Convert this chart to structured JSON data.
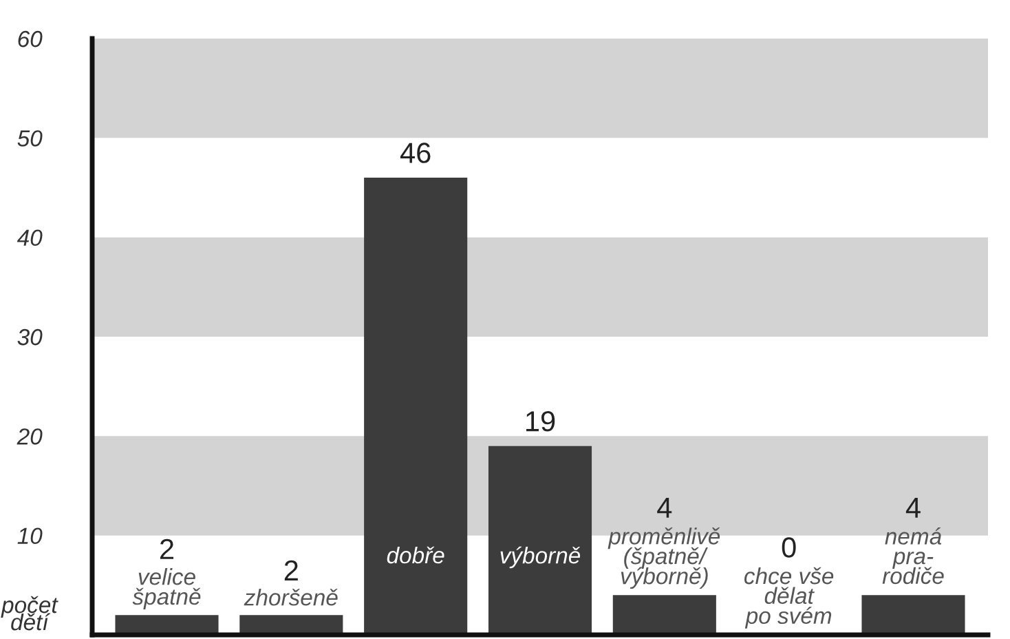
{
  "chart_data": {
    "type": "bar",
    "ylabel": "počet\ndětí",
    "categories": [
      "velice\nšpatně",
      "zhoršeně",
      "dobře",
      "výborně",
      "proměnlivě\n(špatně/\nvýborně)",
      "chce vše\ndělat\npo svém",
      "nemá\npra-\nrodiče"
    ],
    "values": [
      2,
      2,
      46,
      19,
      4,
      0,
      4
    ],
    "color": "#3c3c3c",
    "data_labels": true,
    "ylim": [
      0,
      60
    ],
    "yticks": [
      10,
      20,
      30,
      40,
      50,
      60
    ],
    "bands": [
      {
        "axis": "y",
        "from": 10,
        "to": 20,
        "color": "#d3d3d3"
      },
      {
        "axis": "y",
        "from": 30,
        "to": 40,
        "color": "#d3d3d3"
      },
      {
        "axis": "y",
        "from": 50,
        "to": 60,
        "color": "#d3d3d3"
      }
    ],
    "grid": false
  }
}
